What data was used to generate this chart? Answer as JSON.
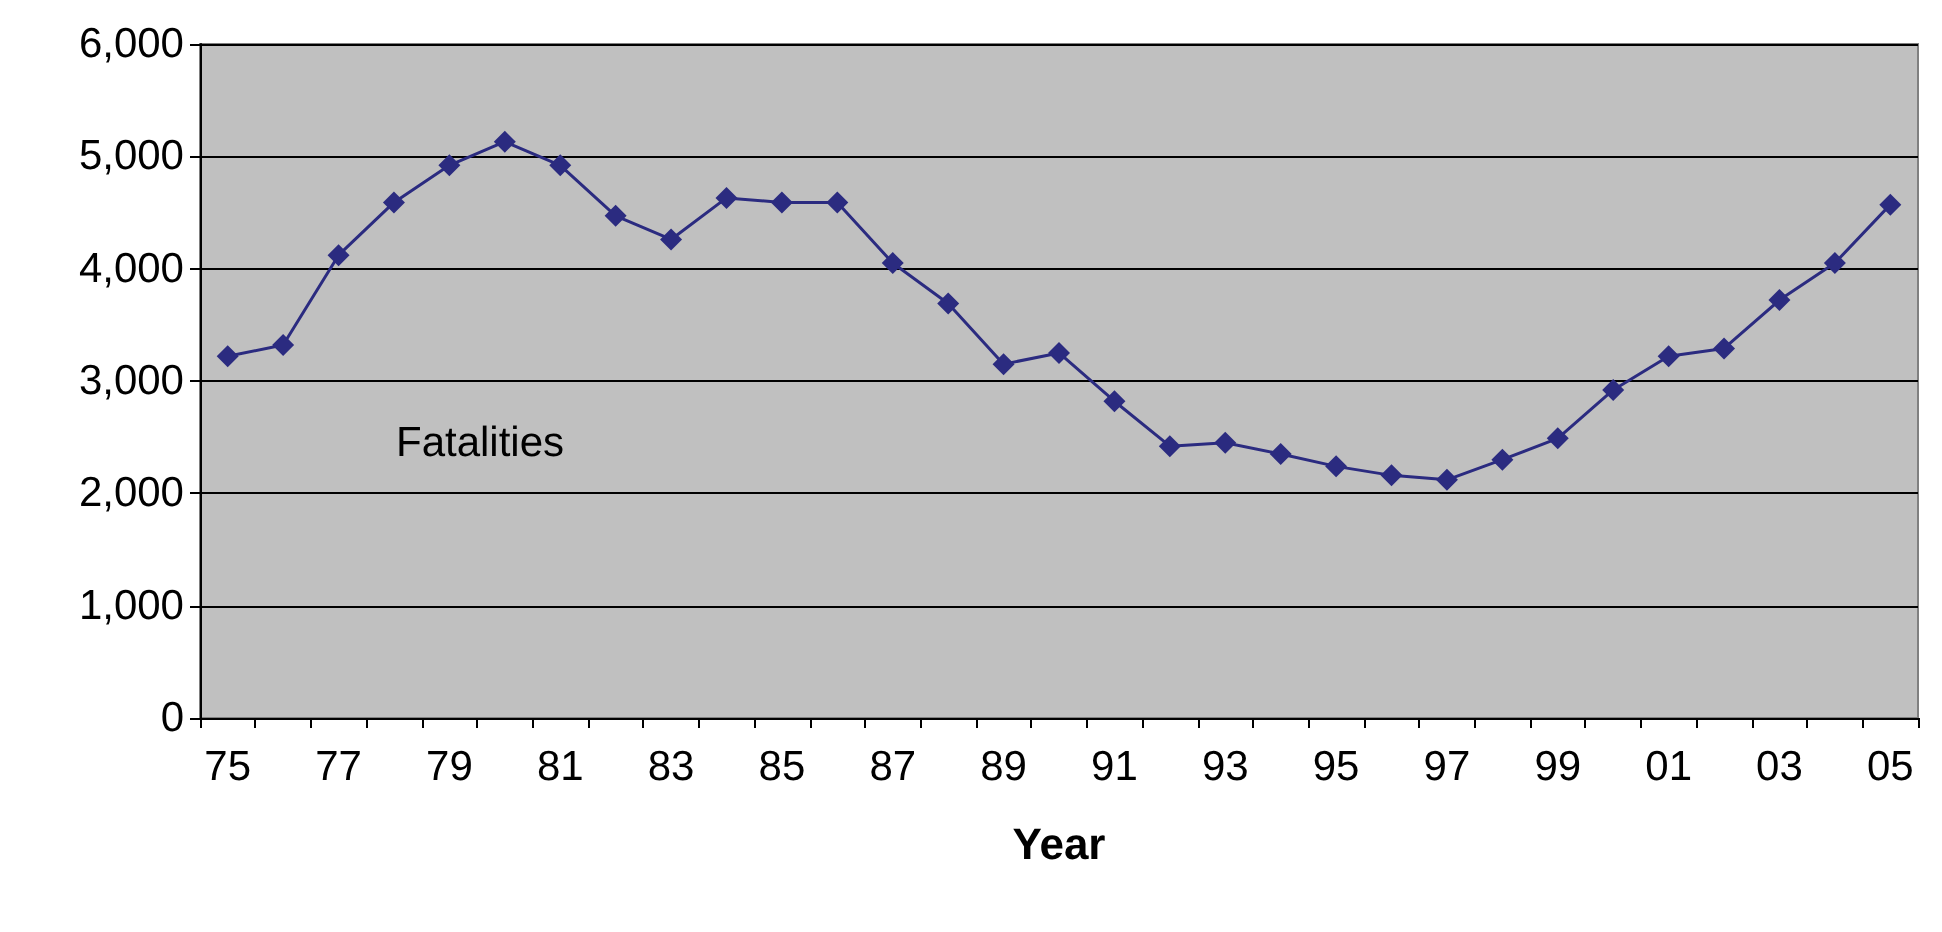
{
  "chart_data": {
    "type": "line",
    "xlabel": "Year",
    "categories": [
      "75",
      null,
      "77",
      null,
      "79",
      null,
      "81",
      null,
      "83",
      null,
      "85",
      null,
      "87",
      null,
      "89",
      null,
      "91",
      null,
      "93",
      null,
      "95",
      null,
      "97",
      null,
      "99",
      null,
      "01",
      null,
      "03",
      null,
      "05"
    ],
    "series": [
      {
        "color": "#2b2b80",
        "values": [
          3220,
          3320,
          4120,
          4590,
          4920,
          5130,
          4920,
          4470,
          4260,
          4630,
          4590,
          4590,
          4050,
          3690,
          3150,
          3250,
          2820,
          2420,
          2450,
          2350,
          2240,
          2160,
          2120,
          2300,
          2490,
          2920,
          3220,
          3290,
          3720,
          4050,
          4570
        ]
      }
    ],
    "annotations": [
      "Fatalities"
    ],
    "ylim": [
      0,
      6000
    ],
    "yticks": [
      0,
      {
        "value": 1000,
        "label": "1,000"
      },
      {
        "value": 2000,
        "label": "2,000"
      },
      {
        "value": 3000,
        "label": "3,000"
      },
      {
        "value": 4000,
        "label": "4,000"
      },
      {
        "value": 5000,
        "label": "5,000"
      },
      {
        "value": 6000,
        "label": "6,000"
      }
    ],
    "grid": "y",
    "marker": "diamond",
    "line_style": "solid"
  }
}
